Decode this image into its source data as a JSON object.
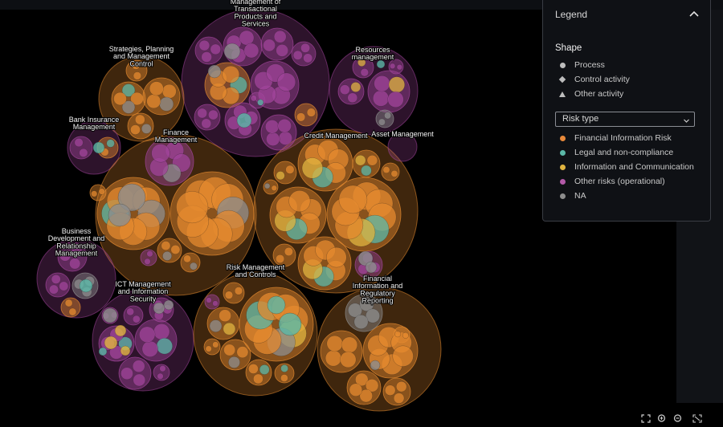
{
  "clusters": [
    {
      "name": "Management of Transactional Products and Services",
      "lines": [
        "Management of",
        "Transactional",
        "Products and",
        "Services"
      ],
      "color": "#a0449a"
    },
    {
      "name": "Strategies, Planning and Management Control",
      "lines": [
        "Strategies, Planning",
        "and Management",
        "Control"
      ],
      "color": "#e48a2f"
    },
    {
      "name": "Resources management",
      "lines": [
        "Resources",
        "management"
      ],
      "color": "#a0449a"
    },
    {
      "name": "Bank Insurance Management",
      "lines": [
        "Bank Insurance",
        "Management"
      ],
      "color": "#a0449a"
    },
    {
      "name": "Finance Management",
      "lines": [
        "Finance",
        "Management"
      ],
      "color": "#e48a2f"
    },
    {
      "name": "Credit Management",
      "lines": [
        "Credit Management"
      ],
      "color": "#e48a2f"
    },
    {
      "name": "Asset Management",
      "lines": [
        "Asset Management"
      ],
      "color": "#a0449a"
    },
    {
      "name": "Business Development and Relationship Management",
      "lines": [
        "Business",
        "Development and",
        "Relationship",
        "Management"
      ],
      "color": "#a0449a"
    },
    {
      "name": "ICT Management and Information Security",
      "lines": [
        "ICT Management",
        "and Information",
        "Security"
      ],
      "color": "#a0449a"
    },
    {
      "name": "Risk Management and Controls",
      "lines": [
        "Risk Management",
        "and Controls"
      ],
      "color": "#e48a2f"
    },
    {
      "name": "Financial Information and Regulatory Reporting",
      "lines": [
        "Financial",
        "Information and",
        "Regulatory",
        "Reporting"
      ],
      "color": "#e48a2f"
    }
  ],
  "legend": {
    "title": "Legend",
    "shape_heading": "Shape",
    "shapes": [
      {
        "label": "Process",
        "icon": "circle-icon"
      },
      {
        "label": "Control activity",
        "icon": "diamond-icon"
      },
      {
        "label": "Other activity",
        "icon": "triangle-icon"
      }
    ],
    "color_by_selected": "Risk type",
    "risk_types": [
      {
        "label": "Financial Information Risk",
        "color": "#e8893a"
      },
      {
        "label": "Legal and non-compliance",
        "color": "#5bb8a8"
      },
      {
        "label": "Information and Communication",
        "color": "#e0b440"
      },
      {
        "label": "Other risks (operational)",
        "color": "#b35aa8"
      },
      {
        "label": "NA",
        "color": "#8d8d8d"
      }
    ]
  },
  "colors": {
    "background": "#000000",
    "orange": "#e48a2f",
    "purple": "#a0449a",
    "teal": "#5bb8a8",
    "yellow": "#e0b440",
    "gray": "#8d8d8d"
  },
  "controls": [
    "fit-to-screen-icon",
    "zoom-in-icon",
    "zoom-out-icon",
    "fullscreen-icon"
  ]
}
